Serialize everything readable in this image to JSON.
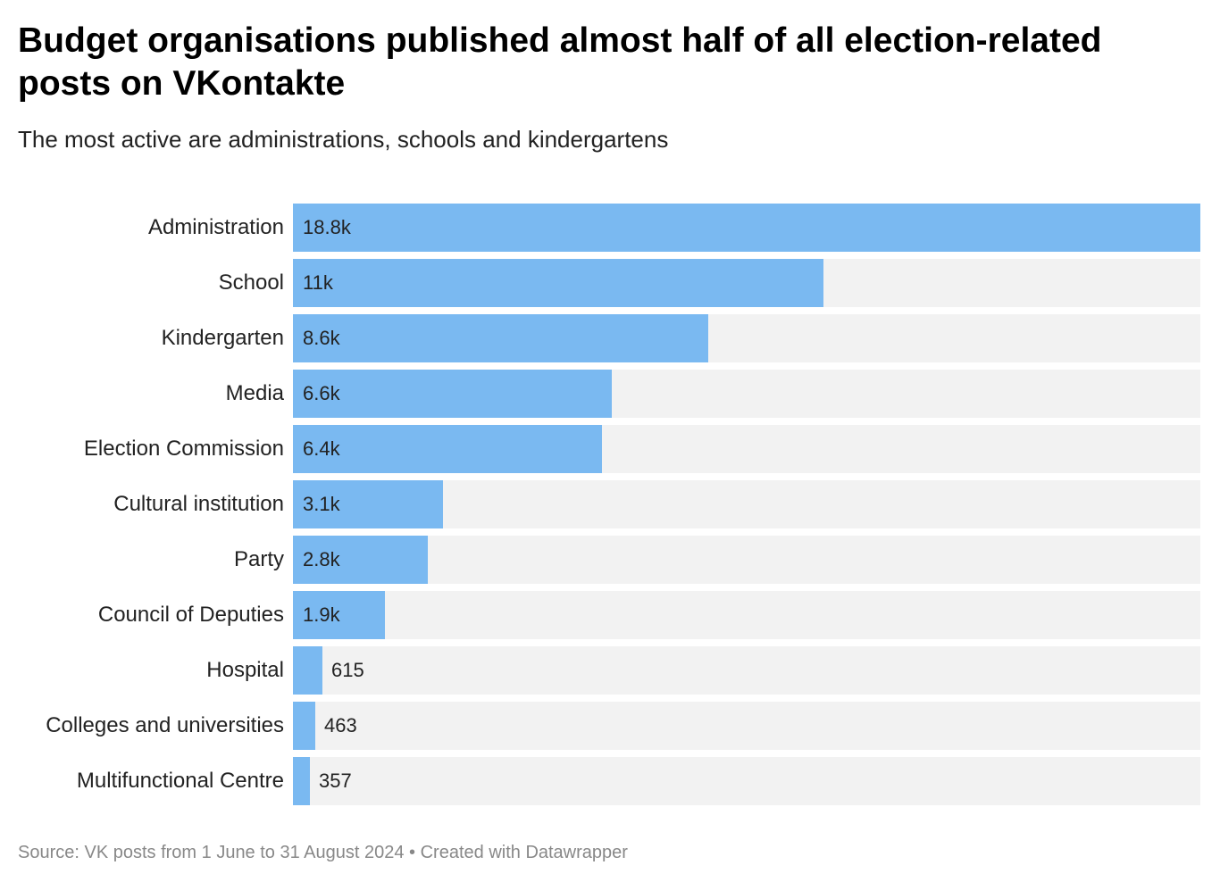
{
  "title": "Budget organisations published almost half of all election-related posts on VKontakte",
  "subtitle": "The most active are administrations, schools and kindergartens",
  "footer": "Source: VK posts from 1 June to 31 August 2024 • Created with Datawrapper",
  "colors": {
    "bar": "#7ab9f1",
    "track": "#f2f2f2"
  },
  "chart_data": {
    "type": "bar",
    "orientation": "horizontal",
    "title": "Budget organisations published almost half of all election-related posts on VKontakte",
    "subtitle": "The most active are administrations, schools and kindergartens",
    "categories": [
      "Administration",
      "School",
      "Kindergarten",
      "Media",
      "Election Commission",
      "Cultural institution",
      "Party",
      "Council of Deputies",
      "Hospital",
      "Colleges and universities",
      "Multifunctional Centre"
    ],
    "values": [
      18800,
      11000,
      8600,
      6600,
      6400,
      3100,
      2800,
      1900,
      615,
      463,
      357
    ],
    "value_labels": [
      "18.8k",
      "11k",
      "8.6k",
      "6.6k",
      "6.4k",
      "3.1k",
      "2.8k",
      "1.9k",
      "615",
      "463",
      "357"
    ],
    "xlim": [
      0,
      18800
    ],
    "grid": false,
    "legend": "none"
  }
}
